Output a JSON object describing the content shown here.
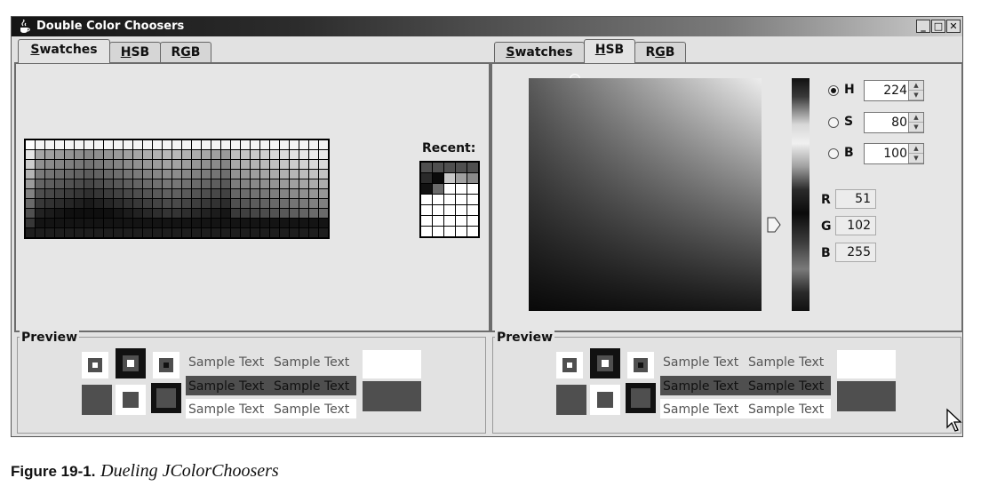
{
  "window": {
    "title": "Double Color Choosers"
  },
  "left_chooser": {
    "tabs": [
      {
        "pre": "",
        "mn": "S",
        "post": "watches"
      },
      {
        "pre": "",
        "mn": "H",
        "post": "SB"
      },
      {
        "pre": "R",
        "mn": "G",
        "post": "B"
      }
    ],
    "recent_label": "Recent:"
  },
  "right_chooser": {
    "tabs": [
      {
        "pre": "",
        "mn": "S",
        "post": "watches"
      },
      {
        "pre": "",
        "mn": "H",
        "post": "SB"
      },
      {
        "pre": "R",
        "mn": "G",
        "post": "B"
      }
    ],
    "hsb": {
      "h": {
        "label": "H",
        "value": "224",
        "selected": true
      },
      "s": {
        "label": "S",
        "value": "80",
        "selected": false
      },
      "b": {
        "label": "B",
        "value": "100",
        "selected": false
      }
    },
    "rgb": {
      "r": {
        "label": "R",
        "value": "51"
      },
      "g": {
        "label": "G",
        "value": "102"
      },
      "b": {
        "label": "B",
        "value": "255"
      }
    }
  },
  "preview": {
    "title": "Preview",
    "sample_text": "Sample Text",
    "color": "#4f4f4f"
  },
  "caption": {
    "figure": "Figure 19-1.",
    "text": "Dueling JColorChoosers"
  }
}
